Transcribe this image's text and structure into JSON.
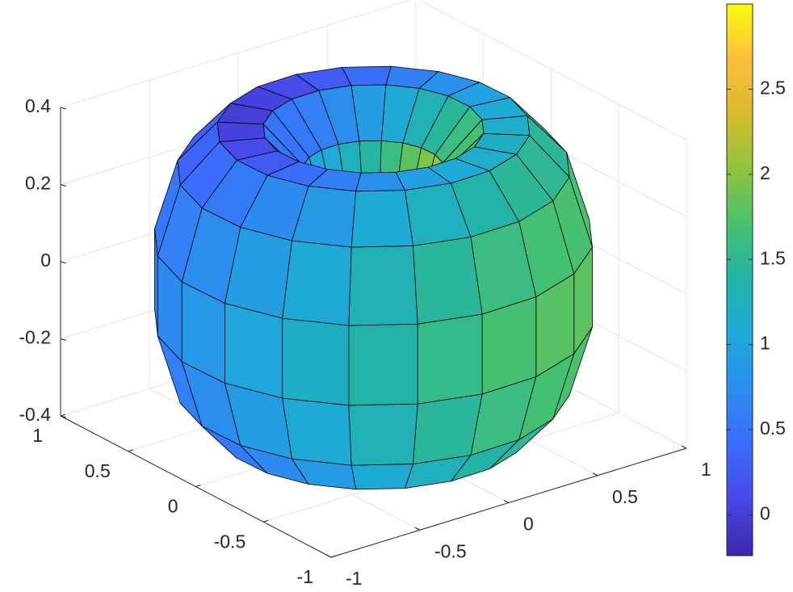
{
  "chart_data": {
    "type": "surface",
    "xlim": [
      -1,
      1
    ],
    "ylim": [
      -1,
      1
    ],
    "zlim": [
      -0.4,
      0.4
    ],
    "xticks": [
      -1,
      -0.5,
      0,
      0.5,
      1
    ],
    "yticks": [
      -1,
      -0.5,
      0,
      0.5,
      1
    ],
    "zticks": [
      -0.4,
      -0.2,
      0,
      0.2,
      0.4
    ],
    "grid": true,
    "clim": [
      -0.24,
      3.0
    ],
    "cticks": [
      0,
      0.5,
      1,
      1.5,
      2,
      2.5
    ],
    "colormap": [
      "#3e26a8",
      "#4748e7",
      "#3b6cfc",
      "#2c8cef",
      "#1ea9db",
      "#21b3a8",
      "#47c16e",
      "#8fc43e",
      "#d8ba2e",
      "#fdbe3d",
      "#f9fb0e"
    ],
    "edge_color": "#000000",
    "c": [
      [
        1.8,
        1.7,
        1.5,
        1.2,
        1.7,
        2.2,
        2.5,
        2.2,
        1.7,
        1.2,
        1.5,
        1.7
      ],
      [
        1.77,
        1.67,
        1.47,
        1.17,
        1.67,
        2.17,
        2.47,
        2.17,
        1.67,
        1.17,
        1.47,
        1.67
      ],
      [
        1.69,
        1.59,
        1.39,
        1.09,
        1.59,
        2.09,
        2.39,
        2.09,
        1.59,
        1.09,
        1.39,
        1.59
      ],
      [
        1.55,
        1.45,
        1.25,
        0.95,
        1.45,
        1.95,
        2.25,
        1.95,
        1.45,
        0.95,
        1.25,
        1.45
      ],
      [
        1.39,
        1.29,
        1.09,
        0.79,
        1.29,
        1.79,
        2.09,
        1.79,
        1.29,
        0.79,
        1.09,
        1.29
      ],
      [
        1.2,
        1.1,
        0.9,
        0.6,
        1.1,
        1.6,
        1.9,
        1.6,
        1.1,
        0.6,
        0.9,
        1.1
      ],
      [
        1.02,
        0.92,
        0.72,
        0.42,
        0.92,
        1.42,
        1.72,
        1.42,
        0.92,
        0.42,
        0.72,
        0.92
      ],
      [
        0.85,
        0.75,
        0.55,
        0.25,
        0.75,
        1.25,
        1.55,
        1.25,
        0.75,
        0.25,
        0.55,
        0.75
      ],
      [
        0.71,
        0.61,
        0.41,
        0.11,
        0.61,
        1.11,
        1.41,
        1.11,
        0.61,
        0.11,
        0.41,
        0.61
      ],
      [
        0.63,
        0.53,
        0.33,
        0.03,
        0.53,
        1.03,
        1.33,
        1.03,
        0.53,
        0.03,
        0.33,
        0.53
      ],
      [
        0.6,
        0.5,
        0.3,
        0,
        0.5,
        1,
        1.3,
        1,
        0.5,
        0,
        0.3,
        0.5
      ],
      [
        0.63,
        0.53,
        0.33,
        0.03,
        0.53,
        1.03,
        1.33,
        1.03,
        0.53,
        0.03,
        0.33,
        0.53
      ],
      [
        0.71,
        0.61,
        0.41,
        0.11,
        0.61,
        1.11,
        1.41,
        1.11,
        0.61,
        0.11,
        0.41,
        0.61
      ],
      [
        0.85,
        0.75,
        0.55,
        0.25,
        0.75,
        1.25,
        1.55,
        1.25,
        0.75,
        0.25,
        0.55,
        0.75
      ],
      [
        1.02,
        0.92,
        0.72,
        0.42,
        0.92,
        1.42,
        1.72,
        1.42,
        0.92,
        0.42,
        0.72,
        0.92
      ],
      [
        1.2,
        1.1,
        0.9,
        0.6,
        1.1,
        1.6,
        1.9,
        1.6,
        1.1,
        0.6,
        0.9,
        1.1
      ],
      [
        1.39,
        1.29,
        1.09,
        0.79,
        1.29,
        1.79,
        2.09,
        1.79,
        1.29,
        0.79,
        1.09,
        1.29
      ],
      [
        1.55,
        1.45,
        1.25,
        0.95,
        1.45,
        1.95,
        2.25,
        1.95,
        1.45,
        0.95,
        1.25,
        1.45
      ],
      [
        1.69,
        1.59,
        1.39,
        1.09,
        1.59,
        2.09,
        2.39,
        2.09,
        1.59,
        1.09,
        1.39,
        1.59
      ],
      [
        1.77,
        1.67,
        1.47,
        1.17,
        1.67,
        2.17,
        2.47,
        2.17,
        1.67,
        1.17,
        1.47,
        1.67
      ]
    ]
  }
}
